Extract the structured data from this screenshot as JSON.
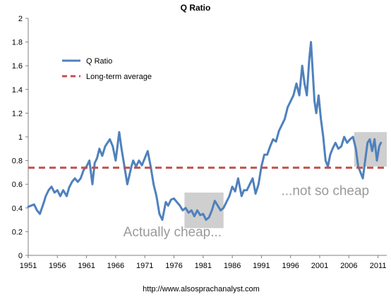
{
  "chart_data": {
    "type": "line",
    "title": "Q Ratio",
    "xlabel": "",
    "ylabel": "",
    "xlim": [
      1951,
      2012.5
    ],
    "ylim": [
      0,
      2
    ],
    "x_ticks": [
      1951,
      1956,
      1961,
      1966,
      1971,
      1976,
      1981,
      1986,
      1991,
      1996,
      2001,
      2006,
      2011
    ],
    "y_ticks": [
      0,
      0.2,
      0.4,
      0.6,
      0.8,
      1,
      1.2,
      1.4,
      1.6,
      1.8,
      2
    ],
    "y_tick_labels": [
      "0",
      "0.2",
      "0.4",
      "0.6",
      "0.8",
      "1",
      "1.2",
      "1.4",
      "1.6",
      "1.8",
      "2"
    ],
    "grid": false,
    "legend_position": "upper-left",
    "series": [
      {
        "name": "Q Ratio",
        "color": "#4f81bd",
        "x": [
          1951,
          1952,
          1952.5,
          1953,
          1953.7,
          1954,
          1954.5,
          1955,
          1955.5,
          1956,
          1956.5,
          1957,
          1957.6,
          1958,
          1958.5,
          1959,
          1959.5,
          1960,
          1960.5,
          1961,
          1961.5,
          1962,
          1962.4,
          1962.8,
          1963.2,
          1963.7,
          1964.2,
          1965,
          1965.5,
          1966,
          1966.6,
          1967,
          1967.5,
          1968,
          1968.7,
          1969,
          1969.5,
          1970,
          1970.5,
          1971,
          1971.5,
          1972,
          1972.5,
          1973,
          1973.5,
          1974,
          1974.6,
          1975,
          1975.5,
          1976,
          1976.5,
          1977,
          1977.5,
          1978,
          1978.5,
          1979,
          1979.5,
          1980,
          1980.5,
          1981,
          1981.5,
          1982,
          1982.5,
          1983,
          1983.5,
          1984,
          1984.5,
          1985,
          1985.5,
          1986,
          1986.5,
          1987,
          1987.6,
          1988,
          1988.5,
          1989,
          1989.5,
          1990,
          1990.5,
          1991,
          1991.5,
          1992,
          1992.5,
          1993,
          1993.5,
          1994,
          1994.5,
          1995,
          1995.5,
          1996,
          1996.5,
          1997,
          1997.5,
          1998,
          1998.4,
          1998.8,
          1999.2,
          1999.5,
          1999.8,
          2000.1,
          2000.4,
          2000.8,
          2001.2,
          2001.6,
          2002,
          2002.4,
          2002.8,
          2003.2,
          2003.7,
          2004.2,
          2004.7,
          2005.2,
          2005.7,
          2006.2,
          2006.7,
          2007.2,
          2007.6,
          2008,
          2008.4,
          2008.8,
          2009.2,
          2009.6,
          2010,
          2010.4,
          2010.8,
          2011.2,
          2011.5
        ],
        "values": [
          0.41,
          0.43,
          0.38,
          0.35,
          0.45,
          0.5,
          0.55,
          0.58,
          0.53,
          0.55,
          0.5,
          0.55,
          0.5,
          0.57,
          0.62,
          0.65,
          0.62,
          0.65,
          0.72,
          0.75,
          0.8,
          0.6,
          0.78,
          0.82,
          0.9,
          0.84,
          0.92,
          0.98,
          0.92,
          0.8,
          1.04,
          0.9,
          0.75,
          0.6,
          0.75,
          0.8,
          0.75,
          0.8,
          0.76,
          0.82,
          0.88,
          0.75,
          0.6,
          0.5,
          0.35,
          0.3,
          0.45,
          0.42,
          0.47,
          0.48,
          0.45,
          0.42,
          0.38,
          0.4,
          0.36,
          0.38,
          0.33,
          0.38,
          0.34,
          0.35,
          0.3,
          0.32,
          0.38,
          0.46,
          0.42,
          0.38,
          0.4,
          0.45,
          0.5,
          0.58,
          0.54,
          0.65,
          0.5,
          0.55,
          0.55,
          0.6,
          0.65,
          0.52,
          0.6,
          0.75,
          0.85,
          0.85,
          0.92,
          0.98,
          0.96,
          1.05,
          1.1,
          1.15,
          1.25,
          1.3,
          1.35,
          1.45,
          1.35,
          1.6,
          1.45,
          1.35,
          1.65,
          1.8,
          1.55,
          1.3,
          1.2,
          1.35,
          1.15,
          1.0,
          0.8,
          0.75,
          0.85,
          0.9,
          0.95,
          0.9,
          0.92,
          1.0,
          0.95,
          0.98,
          1.0,
          0.9,
          0.75,
          0.7,
          0.65,
          0.8,
          0.95,
          0.98,
          0.88,
          0.98,
          0.8,
          0.92,
          0.95
        ]
      },
      {
        "name": "Long-term average",
        "color": "#c0504d",
        "x": [
          1951,
          2012.5
        ],
        "values": [
          0.74,
          0.74
        ]
      }
    ],
    "highlight_boxes": [
      {
        "x0": 1977.8,
        "x1": 1984.5,
        "y0": 0.23,
        "y1": 0.53
      },
      {
        "x0": 2006.9,
        "x1": 2012.5,
        "y0": 0.75,
        "y1": 1.04
      }
    ],
    "annotations": [
      {
        "text": "Actually cheap...",
        "x": 1967.3,
        "y": 0.16
      },
      {
        "text": "...not so cheap",
        "x": 1994.4,
        "y": 0.51
      }
    ]
  },
  "footer": {
    "url": "http://www.alsosprachanalyst.com"
  }
}
